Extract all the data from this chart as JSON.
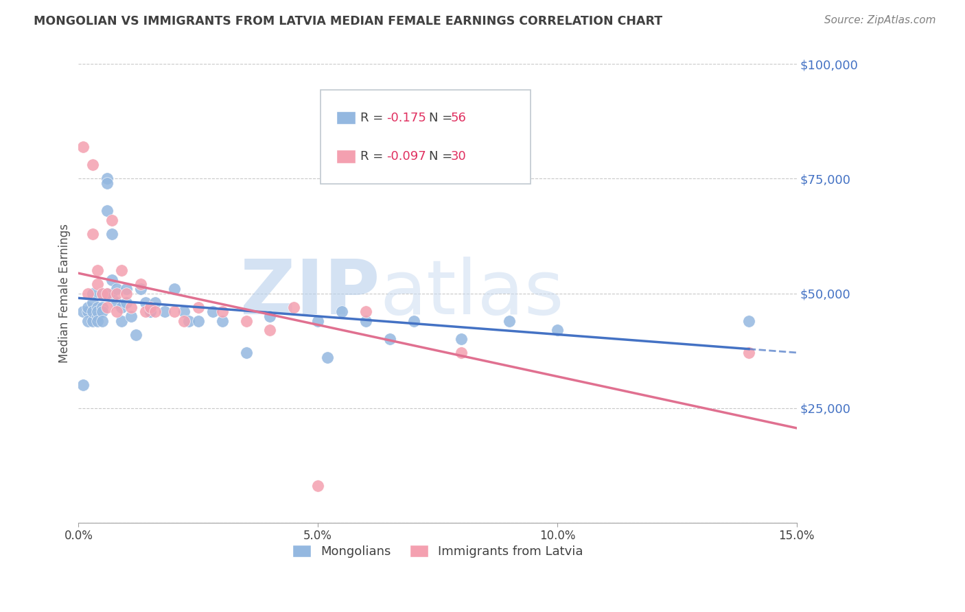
{
  "title": "MONGOLIAN VS IMMIGRANTS FROM LATVIA MEDIAN FEMALE EARNINGS CORRELATION CHART",
  "source": "Source: ZipAtlas.com",
  "ylabel": "Median Female Earnings",
  "xlim": [
    0.0,
    0.15
  ],
  "ylim": [
    0,
    100000
  ],
  "legend1_label": "Mongolians",
  "legend2_label": "Immigrants from Latvia",
  "legend_r1_val": "-0.175",
  "legend_n1": "56",
  "legend_r2_val": "-0.097",
  "legend_n2": "30",
  "mongolian_color": "#94b8e0",
  "latvian_color": "#f4a0b0",
  "mongolian_line_color": "#4472c4",
  "latvian_line_color": "#e07090",
  "watermark_zip": "ZIP",
  "watermark_atlas": "atlas",
  "watermark_color": "#ccddf0",
  "mongolian_x": [
    0.001,
    0.001,
    0.002,
    0.002,
    0.002,
    0.003,
    0.003,
    0.003,
    0.003,
    0.004,
    0.004,
    0.004,
    0.004,
    0.005,
    0.005,
    0.005,
    0.005,
    0.006,
    0.006,
    0.006,
    0.006,
    0.007,
    0.007,
    0.007,
    0.008,
    0.008,
    0.009,
    0.009,
    0.01,
    0.01,
    0.011,
    0.012,
    0.013,
    0.014,
    0.015,
    0.015,
    0.016,
    0.018,
    0.02,
    0.022,
    0.023,
    0.025,
    0.028,
    0.03,
    0.035,
    0.04,
    0.05,
    0.052,
    0.055,
    0.06,
    0.065,
    0.07,
    0.08,
    0.09,
    0.1,
    0.14
  ],
  "mongolian_y": [
    46000,
    30000,
    46000,
    47000,
    44000,
    50000,
    48000,
    44000,
    46000,
    47000,
    45000,
    46000,
    44000,
    50000,
    47000,
    46000,
    44000,
    75000,
    74000,
    68000,
    50000,
    63000,
    49000,
    53000,
    51000,
    48000,
    47000,
    44000,
    48000,
    51000,
    45000,
    41000,
    51000,
    48000,
    46000,
    46000,
    48000,
    46000,
    51000,
    46000,
    44000,
    44000,
    46000,
    44000,
    37000,
    45000,
    44000,
    36000,
    46000,
    44000,
    40000,
    44000,
    40000,
    44000,
    42000,
    44000
  ],
  "latvian_x": [
    0.001,
    0.002,
    0.003,
    0.003,
    0.004,
    0.004,
    0.005,
    0.006,
    0.006,
    0.007,
    0.008,
    0.008,
    0.009,
    0.01,
    0.011,
    0.013,
    0.014,
    0.015,
    0.016,
    0.02,
    0.022,
    0.025,
    0.03,
    0.035,
    0.04,
    0.045,
    0.05,
    0.06,
    0.08,
    0.14
  ],
  "latvian_y": [
    82000,
    50000,
    78000,
    63000,
    55000,
    52000,
    50000,
    50000,
    47000,
    66000,
    50000,
    46000,
    55000,
    50000,
    47000,
    52000,
    46000,
    47000,
    46000,
    46000,
    44000,
    47000,
    46000,
    44000,
    42000,
    47000,
    8000,
    46000,
    37000,
    37000
  ],
  "background_color": "#ffffff",
  "grid_color": "#c8c8c8",
  "title_color": "#404040",
  "source_color": "#808080",
  "right_axis_color": "#4472c4"
}
